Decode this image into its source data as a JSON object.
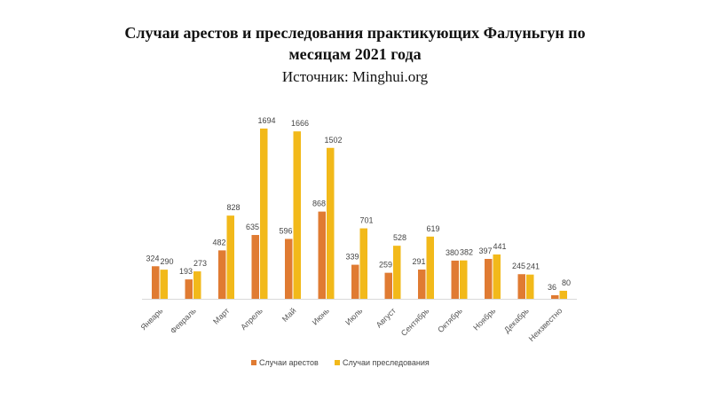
{
  "chart_data": {
    "type": "bar",
    "title_line1": "Случаи арестов и преследования практикующих Фалуньгун по",
    "title_line2": "месяцам 2021 года",
    "subtitle": "Источник: Minghui.org",
    "categories": [
      "Январь",
      "Февраль",
      "Март",
      "Апрель",
      "Май",
      "Июнь",
      "Июль",
      "Август",
      "Сентябрь",
      "Октябрь",
      "Ноябрь",
      "Декабрь",
      "Неизвестно"
    ],
    "series": [
      {
        "name": "Случаи арестов",
        "color": "#e07b32",
        "values": [
          324,
          193,
          482,
          635,
          596,
          868,
          339,
          259,
          291,
          380,
          397,
          245,
          36
        ]
      },
      {
        "name": "Случаи преследования",
        "color": "#f2b91a",
        "values": [
          290,
          273,
          828,
          1694,
          1666,
          1502,
          701,
          528,
          619,
          382,
          441,
          241,
          80
        ]
      }
    ],
    "ylim": [
      0,
      1700
    ],
    "grid": false,
    "legend": "bottom"
  }
}
